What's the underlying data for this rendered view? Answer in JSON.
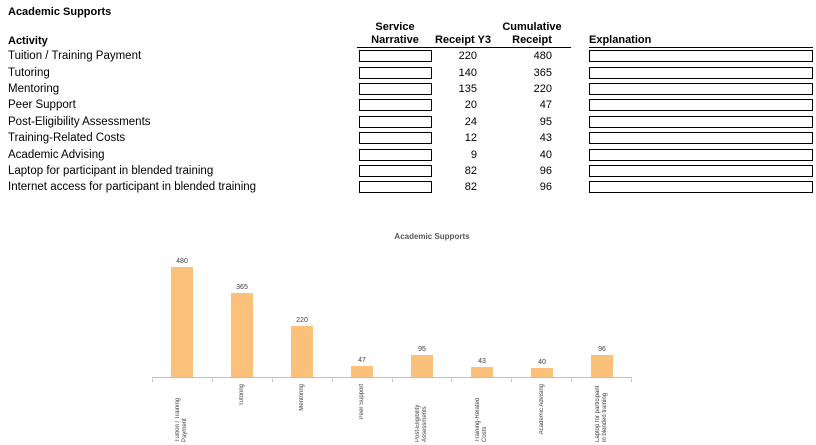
{
  "table": {
    "section_title": "Academic Supports",
    "activity_header": "Activity",
    "service_header": "Service Narrative",
    "receipt_y3_header": "Receipt Y3",
    "cumulative_header": "Cumulative Receipt",
    "explanation_header": "Explanation",
    "rows": [
      {
        "activity": "Tuition / Training Payment",
        "receipt_y3": "220",
        "cumulative": "480"
      },
      {
        "activity": "Tutoring",
        "receipt_y3": "140",
        "cumulative": "365"
      },
      {
        "activity": "Mentoring",
        "receipt_y3": "135",
        "cumulative": "220"
      },
      {
        "activity": "Peer Support",
        "receipt_y3": "20",
        "cumulative": "47"
      },
      {
        "activity": "Post-Eligibility Assessments",
        "receipt_y3": "24",
        "cumulative": "95"
      },
      {
        "activity": "Training-Related Costs",
        "receipt_y3": "12",
        "cumulative": "43"
      },
      {
        "activity": "Academic Advising",
        "receipt_y3": "9",
        "cumulative": "40"
      },
      {
        "activity": "Laptop for participant in blended training",
        "receipt_y3": "82",
        "cumulative": "96"
      },
      {
        "activity": "Internet access for participant in blended training",
        "receipt_y3": "82",
        "cumulative": "96"
      }
    ]
  },
  "chart_data": {
    "type": "bar",
    "title": "Academic Supports",
    "categories": [
      "Tuition / Training Payment",
      "Tutoring",
      "Mentoring",
      "Peer Support",
      "Post-Eligibility Assessments",
      "Training-Related Costs",
      "Academic Advising",
      "Laptop for participant in blended training"
    ],
    "values": [
      480,
      365,
      220,
      47,
      95,
      43,
      40,
      96
    ],
    "ylim": [
      0,
      500
    ],
    "grid": false,
    "legend": "none",
    "data_labels": true,
    "bar_color": "#FBC079",
    "axis_color": "#BFBFBF",
    "label_color": "#404040",
    "title_color": "#595959"
  }
}
